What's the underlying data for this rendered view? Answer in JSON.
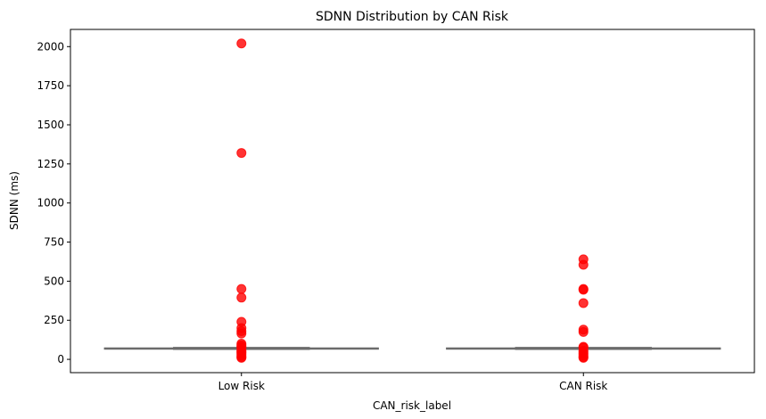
{
  "chart_data": {
    "type": "box",
    "title": "SDNN Distribution by CAN Risk",
    "xlabel": "CAN_risk_label",
    "ylabel": "SDNN (ms)",
    "categories": [
      "Low Risk",
      "CAN Risk"
    ],
    "ylim": [
      -85,
      2110
    ],
    "yticks": [
      0,
      250,
      500,
      750,
      1000,
      1250,
      1500,
      1750,
      2000
    ],
    "grid": false,
    "outlier_color": "#ff0000",
    "box_line_color": "#6b6b6b",
    "groups": [
      {
        "name": "Low Risk",
        "median": 70,
        "q1": 67,
        "q3": 72,
        "whisker_low": 65,
        "whisker_high": 75,
        "outliers": [
          2020,
          1320,
          450,
          395,
          240,
          200,
          180,
          165,
          100,
          90,
          80,
          75,
          60,
          50,
          45,
          35,
          25,
          15,
          10
        ]
      },
      {
        "name": "CAN Risk",
        "median": 70,
        "q1": 67,
        "q3": 72,
        "whisker_low": 65,
        "whisker_high": 75,
        "outliers": [
          640,
          605,
          450,
          445,
          360,
          190,
          175,
          80,
          75,
          55,
          45,
          35,
          25,
          15,
          10
        ]
      }
    ]
  }
}
